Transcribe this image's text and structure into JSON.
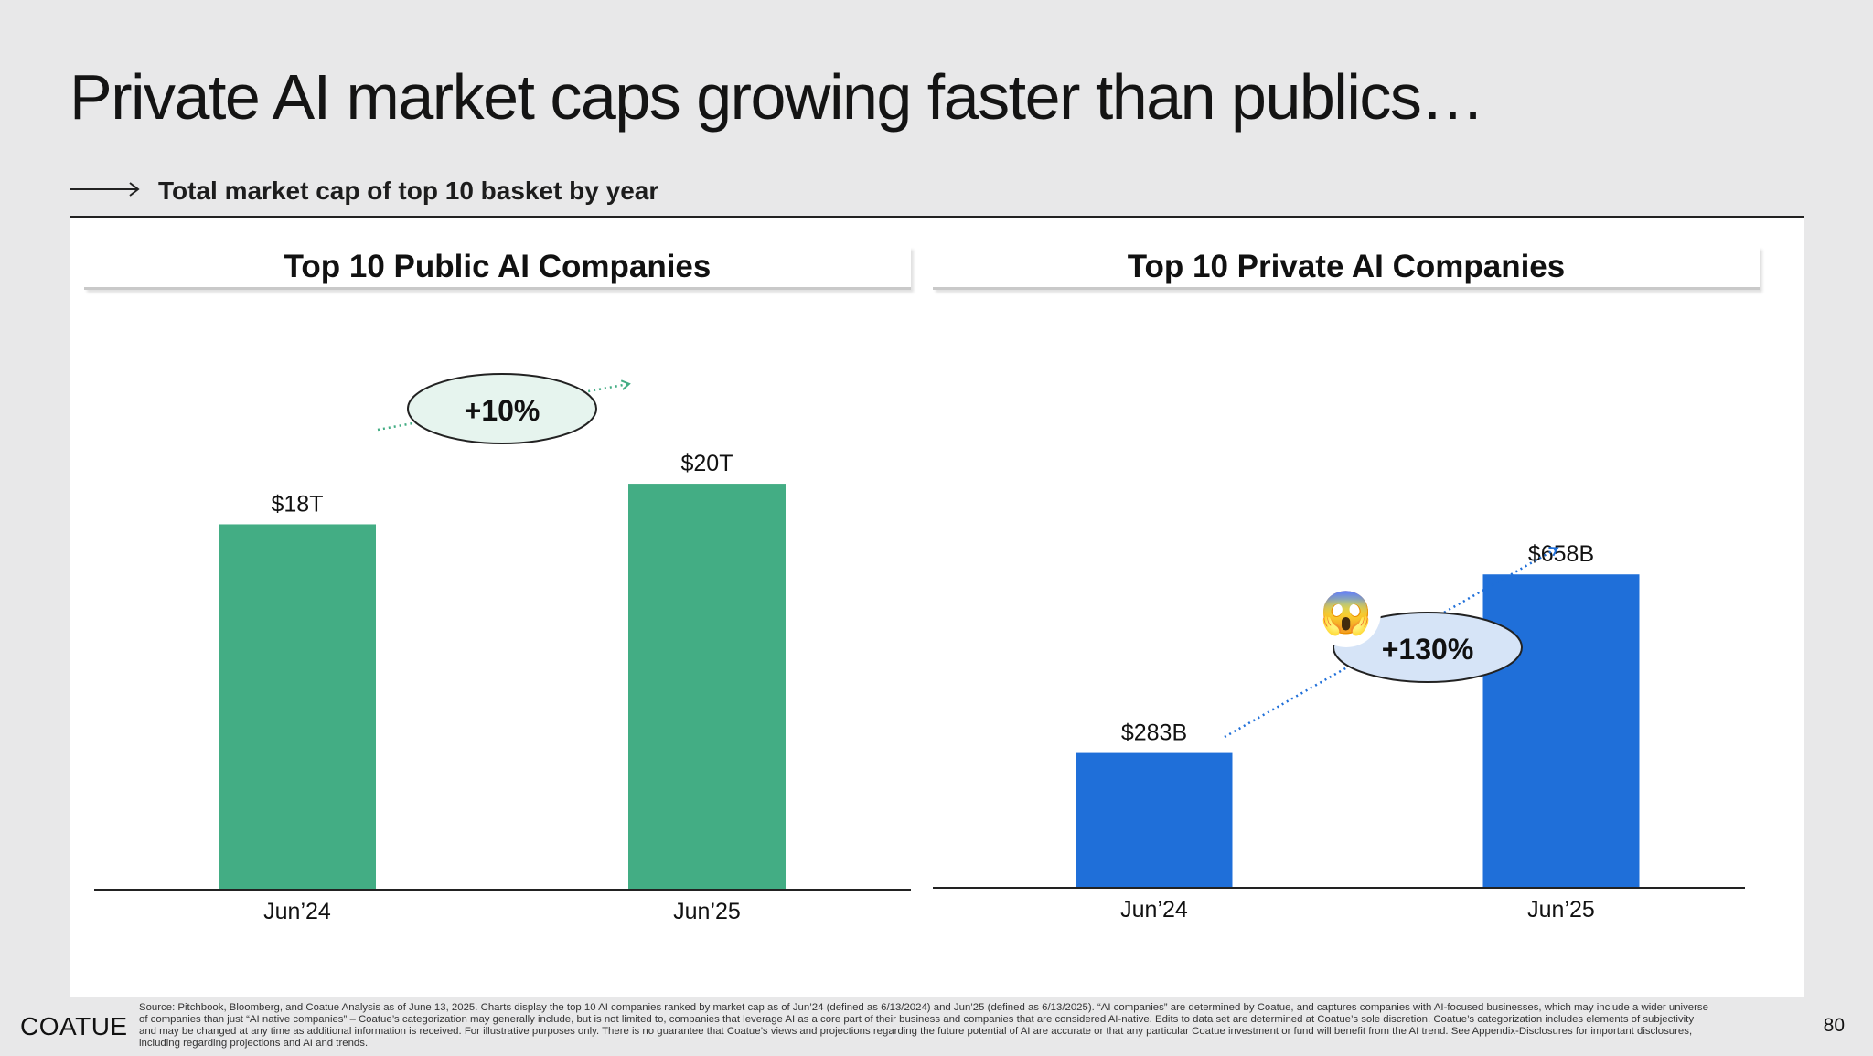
{
  "title": "Private AI market caps growing faster than publics…",
  "subheading": "Total market cap of top 10 basket by year",
  "chart_data": [
    {
      "type": "bar",
      "title": "Top 10 Public AI Companies",
      "categories": [
        "Jun’24",
        "Jun’25"
      ],
      "values": [
        18,
        20
      ],
      "value_labels": [
        "$18T",
        "$20T"
      ],
      "unit": "T",
      "color": "#43ad84",
      "growth_label": "+10%",
      "growth_bubble_color": "#e6f4ee",
      "ylim": [
        0,
        21.4
      ],
      "grid": false,
      "legend": "none"
    },
    {
      "type": "bar",
      "title": "Top 10 Private AI Companies",
      "categories": [
        "Jun’24",
        "Jun’25"
      ],
      "values": [
        283,
        658
      ],
      "value_labels": [
        "$283B",
        "$658B"
      ],
      "unit": "B",
      "color": "#1f6fd9",
      "growth_label": "+130%",
      "growth_bubble_color": "#d6e4f7",
      "emoji": "😱",
      "ylim": [
        0,
        1100
      ],
      "grid": false,
      "legend": "none"
    }
  ],
  "footer": {
    "logo": "COATUE",
    "source": "Source: Pitchbook, Bloomberg, and Coatue Analysis  as of June 13, 2025. Charts display the top 10 AI companies ranked by market cap as of Jun’24 (defined as 6/13/2024) and Jun’25 (defined as 6/13/2025). “AI companies” are determined by Coatue, and captures companies with AI-focused businesses, which may include a wider universe of companies than just “AI native companies” – Coatue’s categorization may generally include, but is not limited to, companies that leverage AI as a core part of their business and companies that are considered AI-native. Edits to data set are determined at Coatue’s sole discretion. Coatue’s categorization includes elements of subjectivity and may be changed at any time as additional information is received. For illustrative purposes only. There is no guarantee that Coatue’s views and projections regarding the future potential of AI are accurate or that any particular Coatue investment or fund will benefit from the AI trend. See Appendix-Disclosures for important disclosures, including regarding projections and AI and trends.",
    "page_number": "80"
  }
}
